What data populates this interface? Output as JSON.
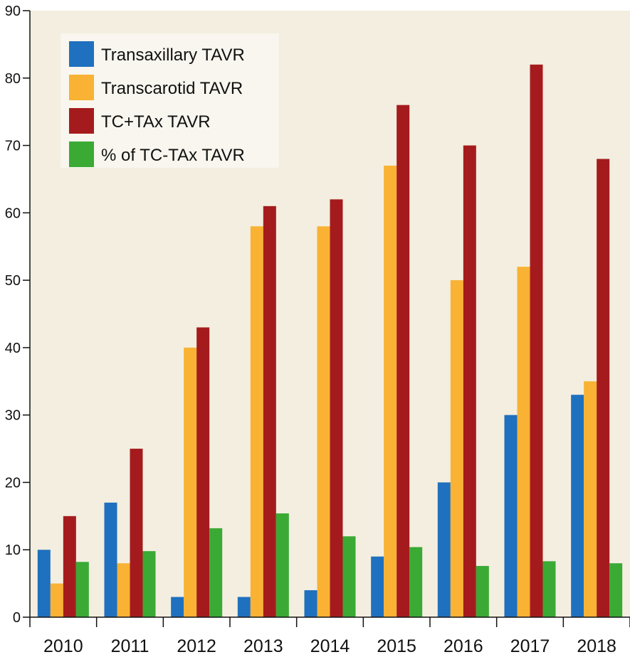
{
  "chart_data": {
    "type": "bar",
    "title": "",
    "xlabel": "",
    "ylabel": "",
    "ylim": [
      0,
      90
    ],
    "yticks": [
      0,
      10,
      20,
      30,
      40,
      50,
      60,
      70,
      80,
      90
    ],
    "categories": [
      "2010",
      "2011",
      "2012",
      "2013",
      "2014",
      "2015",
      "2016",
      "2017",
      "2018"
    ],
    "legend_position": "top-left",
    "grid": false,
    "series": [
      {
        "name": "Transaxillary TAVR",
        "color": "#1f70bf",
        "values": [
          10,
          17,
          3,
          3,
          4,
          9,
          20,
          30,
          33
        ]
      },
      {
        "name": "Transcarotid TAVR",
        "color": "#f9b233",
        "values": [
          5,
          8,
          40,
          58,
          58,
          67,
          50,
          52,
          35
        ]
      },
      {
        "name": "TC+TAx TAVR",
        "color": "#a51b1d",
        "values": [
          15,
          25,
          43,
          61,
          62,
          76,
          70,
          82,
          68
        ]
      },
      {
        "name": "% of TC-TAx TAVR",
        "color": "#3aaa35",
        "values": [
          8.2,
          9.8,
          13.2,
          15.4,
          12,
          10.4,
          7.6,
          8.3,
          8
        ]
      }
    ]
  }
}
